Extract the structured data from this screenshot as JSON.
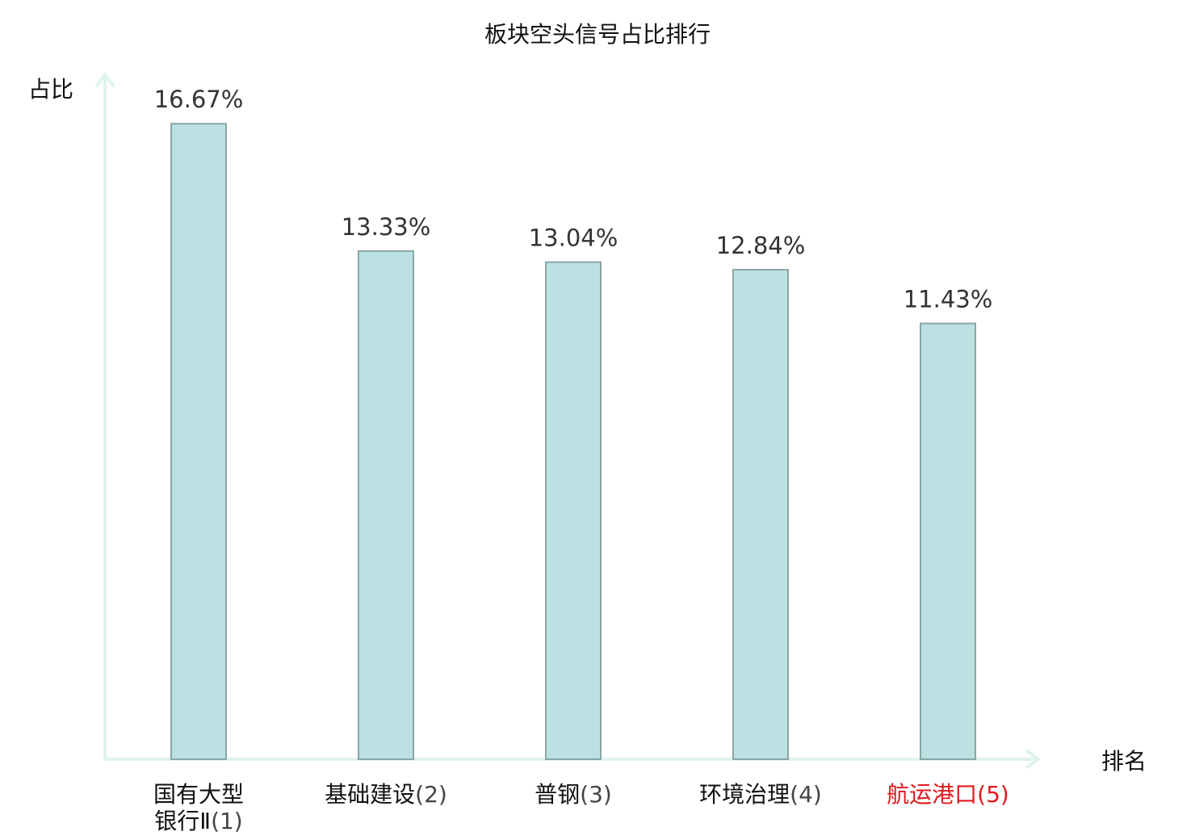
{
  "chart_data": {
    "type": "bar",
    "title": "板块空头信号占比排行",
    "ylabel": "占比",
    "xlabel": "排名",
    "ylim": [
      0,
      17.5
    ],
    "grid": false,
    "categories": [
      {
        "name_lines": [
          "国有大型",
          "银行Ⅱ"
        ],
        "rank": "(1)",
        "highlight": false
      },
      {
        "name_lines": [
          "基础建设"
        ],
        "rank": "(2)",
        "highlight": false
      },
      {
        "name_lines": [
          "普钢"
        ],
        "rank": "(3)",
        "highlight": false
      },
      {
        "name_lines": [
          "环境治理"
        ],
        "rank": "(4)",
        "highlight": false
      },
      {
        "name_lines": [
          "航运港口"
        ],
        "rank": "(5)",
        "highlight": true
      }
    ],
    "values": [
      16.67,
      13.33,
      13.04,
      12.84,
      11.43
    ],
    "value_labels": [
      "16.67%",
      "13.33%",
      "13.04%",
      "12.84%",
      "11.43%"
    ]
  },
  "colors": {
    "bar_fill": "#bce1e2",
    "bar_stroke": "#8aa6a6",
    "axis": "#dff2ef",
    "highlight_text": "#e0191e"
  }
}
